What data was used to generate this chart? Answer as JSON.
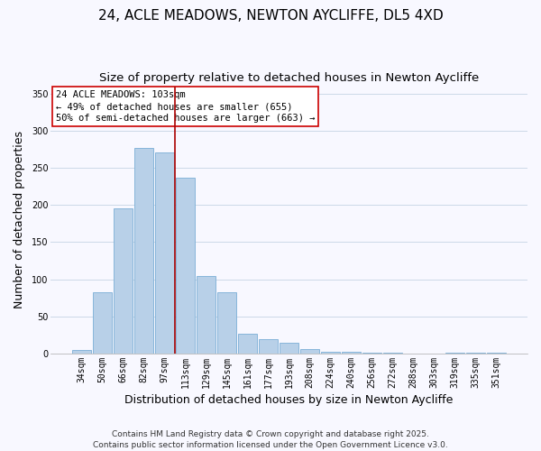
{
  "title": "24, ACLE MEADOWS, NEWTON AYCLIFFE, DL5 4XD",
  "subtitle": "Size of property relative to detached houses in Newton Aycliffe",
  "xlabel": "Distribution of detached houses by size in Newton Aycliffe",
  "ylabel": "Number of detached properties",
  "bar_labels": [
    "34sqm",
    "50sqm",
    "66sqm",
    "82sqm",
    "97sqm",
    "113sqm",
    "129sqm",
    "145sqm",
    "161sqm",
    "177sqm",
    "193sqm",
    "208sqm",
    "224sqm",
    "240sqm",
    "256sqm",
    "272sqm",
    "288sqm",
    "303sqm",
    "319sqm",
    "335sqm",
    "351sqm"
  ],
  "bar_values": [
    5,
    83,
    196,
    277,
    271,
    237,
    104,
    83,
    27,
    20,
    15,
    6,
    3,
    2,
    1,
    1,
    0,
    0,
    1,
    1,
    1
  ],
  "bar_color": "#b8d0e8",
  "bar_edge_color": "#7aaed6",
  "vline_x": 4.5,
  "vline_color": "#aa0000",
  "annotation_title": "24 ACLE MEADOWS: 103sqm",
  "annotation_line2": "← 49% of detached houses are smaller (655)",
  "annotation_line3": "50% of semi-detached houses are larger (663) →",
  "annotation_box_color": "#ffffff",
  "annotation_box_edge_color": "#cc0000",
  "ylim": [
    0,
    360
  ],
  "yticks": [
    0,
    50,
    100,
    150,
    200,
    250,
    300,
    350
  ],
  "footer_line1": "Contains HM Land Registry data © Crown copyright and database right 2025.",
  "footer_line2": "Contains public sector information licensed under the Open Government Licence v3.0.",
  "background_color": "#f8f8ff",
  "grid_color": "#ccd9e8",
  "title_fontsize": 11,
  "subtitle_fontsize": 9.5,
  "axis_label_fontsize": 9,
  "tick_fontsize": 7,
  "annotation_fontsize": 7.5,
  "footer_fontsize": 6.5
}
